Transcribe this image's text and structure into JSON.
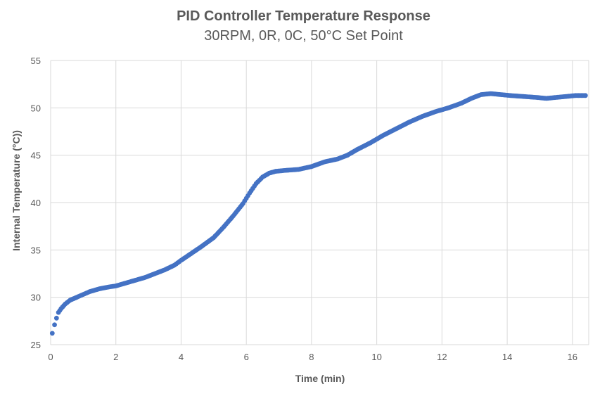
{
  "chart_data": {
    "type": "scatter",
    "title": "PID Controller Temperature Response",
    "subtitle": "30RPM, 0R, 0C, 50°C Set Point",
    "xlabel": "Time (min)",
    "ylabel": "Internal Temperature (°C))",
    "xlim": [
      0,
      16.5
    ],
    "ylim": [
      25,
      55
    ],
    "x_ticks": [
      "0",
      "2",
      "4",
      "6",
      "8",
      "10",
      "12",
      "14",
      "16"
    ],
    "y_ticks": [
      "25",
      "30",
      "35",
      "40",
      "45",
      "50",
      "55"
    ],
    "grid": true,
    "marker_color": "#4472C4",
    "x": [
      0.05,
      0.12,
      0.18,
      0.24,
      0.32,
      0.45,
      0.6,
      0.8,
      1.0,
      1.2,
      1.5,
      1.8,
      2.0,
      2.3,
      2.6,
      2.9,
      3.2,
      3.5,
      3.8,
      4.0,
      4.3,
      4.6,
      5.0,
      5.3,
      5.6,
      5.9,
      6.1,
      6.3,
      6.5,
      6.7,
      6.9,
      7.2,
      7.6,
      8.0,
      8.4,
      8.8,
      9.1,
      9.4,
      9.8,
      10.2,
      10.6,
      11.0,
      11.4,
      11.8,
      12.2,
      12.6,
      12.9,
      13.2,
      13.5,
      13.8,
      14.1,
      14.5,
      14.9,
      15.2,
      15.5,
      15.8,
      16.1,
      16.4
    ],
    "y": [
      26.2,
      27.1,
      27.8,
      28.4,
      28.8,
      29.3,
      29.7,
      30.0,
      30.3,
      30.6,
      30.9,
      31.1,
      31.2,
      31.5,
      31.8,
      32.1,
      32.5,
      32.9,
      33.4,
      33.9,
      34.6,
      35.3,
      36.3,
      37.4,
      38.6,
      39.9,
      41.0,
      42.0,
      42.7,
      43.1,
      43.3,
      43.4,
      43.5,
      43.8,
      44.3,
      44.6,
      45.0,
      45.6,
      46.3,
      47.1,
      47.8,
      48.5,
      49.1,
      49.6,
      50.0,
      50.5,
      51.0,
      51.4,
      51.5,
      51.4,
      51.3,
      51.2,
      51.1,
      51.0,
      51.1,
      51.2,
      51.3,
      51.3
    ]
  }
}
